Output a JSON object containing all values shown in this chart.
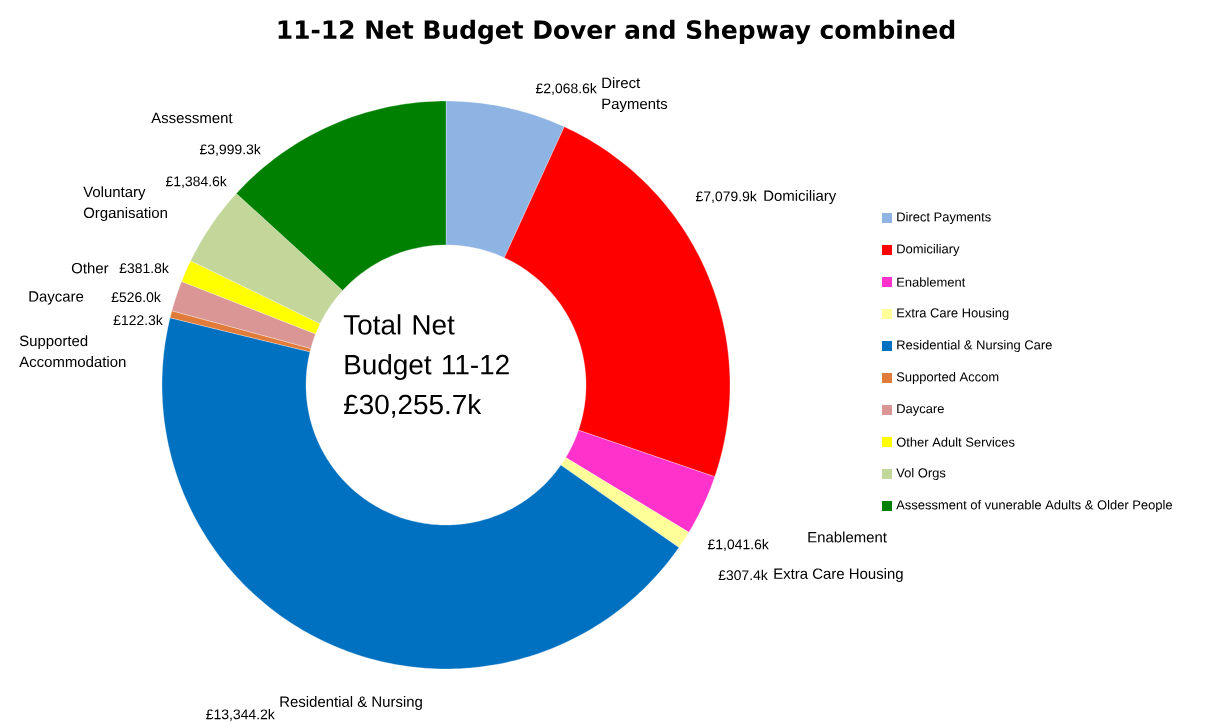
{
  "chart_data": {
    "type": "donut",
    "title": "11-12 Net Budget Dover and Shepway combined",
    "categories": [
      "Direct Payments",
      "Domiciliary",
      "Enablement",
      "Extra Care Housing",
      "Residential & Nursing Care",
      "Supported Accom",
      "Daycare",
      "Other Adult Services",
      "Vol Orgs",
      "Assessment of vunerable Adults & Older People"
    ],
    "values": [
      2068.6,
      7079.9,
      1041.6,
      307.4,
      13344.2,
      122.3,
      526.0,
      381.8,
      1384.6,
      3999.3
    ],
    "colors": [
      "#8db4e2",
      "#ff0000",
      "#ff33cc",
      "#ffff99",
      "#0070c0",
      "#e07b39",
      "#da9694",
      "#ffff00",
      "#c4d79b",
      "#008000"
    ],
    "value_labels": [
      "£2,068.6k",
      "£7,079.9k",
      "£1,041.6k",
      "£307.4k",
      "£13,344.2k",
      "£122.3k",
      "£526.0k",
      "£381.8k",
      "£1,384.6k",
      "£3,999.3k"
    ],
    "annotations": [
      "Direct Payments",
      "Domiciliary",
      "Enablement",
      "Extra Care Housing",
      "Residential & Nursing",
      "Supported Accommodation",
      "Daycare",
      "Other",
      "Voluntary Organisation",
      "Assessment",
      "Total Net Budget 11-12 £30,255.7k"
    ],
    "legend": "right"
  }
}
